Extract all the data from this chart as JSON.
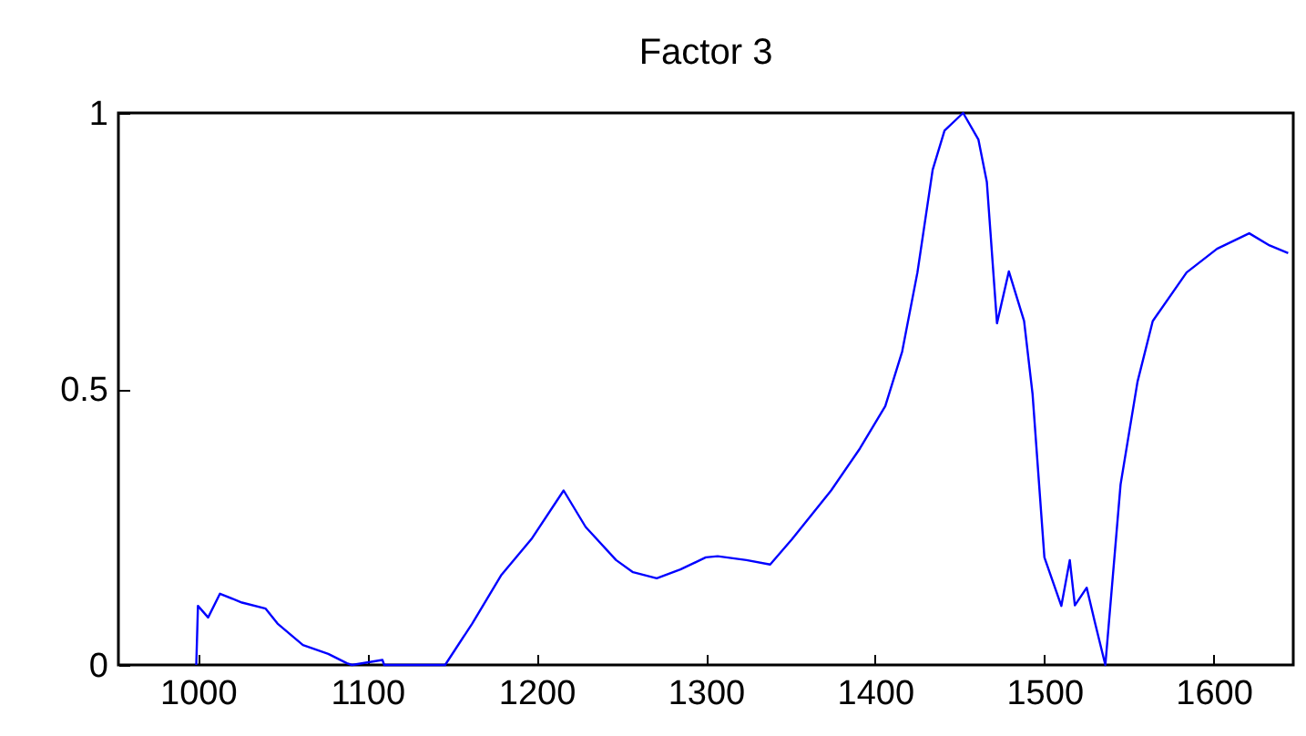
{
  "chart_data": {
    "type": "line",
    "title": "Factor 3",
    "x": [
      999,
      1000,
      1006,
      1013,
      1026,
      1040,
      1047,
      1062,
      1077,
      1088,
      1091,
      1109,
      1110,
      1146,
      1162,
      1179,
      1197,
      1216,
      1229,
      1247,
      1257,
      1271,
      1285,
      1300,
      1307,
      1324,
      1338,
      1351,
      1374,
      1391,
      1406,
      1416,
      1425,
      1434,
      1441,
      1452,
      1461,
      1466,
      1472,
      1479,
      1488,
      1493,
      1500,
      1510,
      1515,
      1518,
      1525,
      1530,
      1536,
      1545,
      1555,
      1564,
      1584,
      1602,
      1621,
      1633,
      1644
    ],
    "series": [
      {
        "color": "#0000ff",
        "values": [
          0,
          0.107,
          0.086,
          0.129,
          0.113,
          0.102,
          0.075,
          0.036,
          0.02,
          0.003,
          0,
          0.009,
          0,
          0,
          0.075,
          0.162,
          0.228,
          0.316,
          0.25,
          0.19,
          0.168,
          0.157,
          0.173,
          0.195,
          0.197,
          0.19,
          0.182,
          0.228,
          0.316,
          0.392,
          0.469,
          0.568,
          0.711,
          0.897,
          0.968,
          1.0,
          0.952,
          0.875,
          0.619,
          0.713,
          0.623,
          0.491,
          0.195,
          0.107,
          0.19,
          0.108,
          0.14,
          0.075,
          0,
          0.327,
          0.513,
          0.623,
          0.711,
          0.754,
          0.782,
          0.76,
          0.746
        ]
      }
    ],
    "xlim": [
      953,
      1647
    ],
    "ylim": [
      0,
      1
    ],
    "xticks": [
      1000,
      1100,
      1200,
      1300,
      1400,
      1500,
      1600
    ],
    "yticks": [
      0,
      0.5,
      1
    ],
    "grid": false,
    "marker": "none",
    "line_style": "solid"
  }
}
